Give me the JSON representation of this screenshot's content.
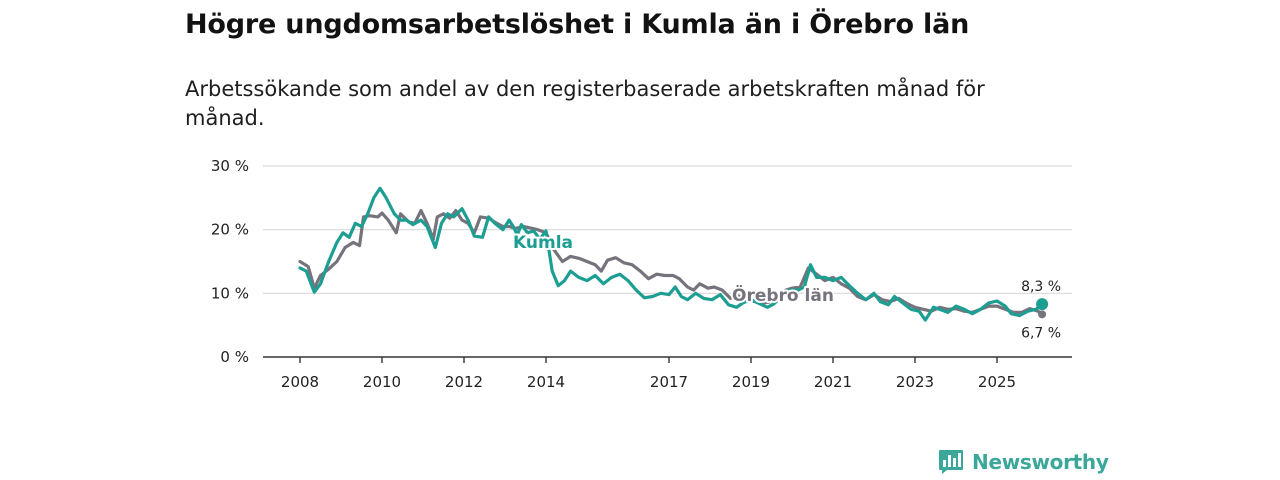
{
  "title": "Högre ungdomsarbetslöshet i Kumla än i Örebro län",
  "subtitle": "Arbetssökande som andel av den registerbaserade arbetskraften månad för månad.",
  "brand": {
    "name": "Newsworthy",
    "color": "#3aa79a"
  },
  "chart_data": {
    "type": "line",
    "title": "Högre ungdomsarbetslöshet i Kumla än i Örebro län",
    "subtitle": "Arbetssökande som andel av den registerbaserade arbetskraften månad för månad.",
    "xlabel": "",
    "ylabel": "",
    "xlim": [
      2007.9,
      2026.5
    ],
    "ylim": [
      0,
      30
    ],
    "x_ticks": [
      2008,
      2010,
      2012,
      2014,
      2017,
      2019,
      2021,
      2023,
      2025
    ],
    "x_tick_labels": [
      "2008",
      "2010",
      "2012",
      "2014",
      "2017",
      "2019",
      "2021",
      "2023",
      "2025"
    ],
    "y_ticks": [
      0,
      10,
      20,
      30
    ],
    "y_tick_labels": [
      "0 %",
      "10 %",
      "20 %",
      "30 %"
    ],
    "grid": "horizontal",
    "series": [
      {
        "name": "Örebro län",
        "label": "Örebro län",
        "color": "#77737d",
        "end_label": "6,7 %",
        "points": [
          [
            2008.0,
            15.0
          ],
          [
            2008.2,
            14.2
          ],
          [
            2008.35,
            10.8
          ],
          [
            2008.5,
            12.8
          ],
          [
            2008.7,
            13.8
          ],
          [
            2008.9,
            15.0
          ],
          [
            2009.1,
            17.2
          ],
          [
            2009.3,
            18.0
          ],
          [
            2009.45,
            17.5
          ],
          [
            2009.55,
            22.0
          ],
          [
            2009.7,
            22.2
          ],
          [
            2009.9,
            22.0
          ],
          [
            2010.0,
            22.6
          ],
          [
            2010.15,
            21.5
          ],
          [
            2010.35,
            19.5
          ],
          [
            2010.45,
            22.5
          ],
          [
            2010.65,
            21.2
          ],
          [
            2010.8,
            21.0
          ],
          [
            2010.95,
            23.0
          ],
          [
            2011.1,
            21.0
          ],
          [
            2011.25,
            18.5
          ],
          [
            2011.35,
            22.0
          ],
          [
            2011.5,
            22.5
          ],
          [
            2011.65,
            21.8
          ],
          [
            2011.8,
            23.0
          ],
          [
            2011.95,
            21.5
          ],
          [
            2012.1,
            21.0
          ],
          [
            2012.25,
            19.5
          ],
          [
            2012.4,
            22.0
          ],
          [
            2012.6,
            21.8
          ],
          [
            2012.8,
            21.0
          ],
          [
            2012.95,
            20.5
          ],
          [
            2013.1,
            20.5
          ],
          [
            2013.25,
            20.2
          ],
          [
            2013.45,
            20.5
          ],
          [
            2013.6,
            20.3
          ],
          [
            2013.8,
            20.0
          ],
          [
            2014.0,
            19.5
          ],
          [
            2014.2,
            16.8
          ],
          [
            2014.4,
            15.0
          ],
          [
            2014.6,
            15.8
          ],
          [
            2014.8,
            15.5
          ],
          [
            2015.0,
            15.0
          ],
          [
            2015.2,
            14.5
          ],
          [
            2015.35,
            13.5
          ],
          [
            2015.5,
            15.2
          ],
          [
            2015.7,
            15.6
          ],
          [
            2015.9,
            14.8
          ],
          [
            2016.1,
            14.5
          ],
          [
            2016.3,
            13.5
          ],
          [
            2016.5,
            12.3
          ],
          [
            2016.7,
            13.0
          ],
          [
            2016.9,
            12.8
          ],
          [
            2017.1,
            12.8
          ],
          [
            2017.25,
            12.3
          ],
          [
            2017.45,
            11.0
          ],
          [
            2017.6,
            10.5
          ],
          [
            2017.75,
            11.5
          ],
          [
            2017.95,
            10.8
          ],
          [
            2018.1,
            11.0
          ],
          [
            2018.3,
            10.5
          ],
          [
            2018.5,
            9.2
          ],
          [
            2018.7,
            9.6
          ],
          [
            2018.9,
            9.0
          ],
          [
            2019.1,
            8.7
          ],
          [
            2019.3,
            8.5
          ],
          [
            2019.5,
            8.7
          ],
          [
            2019.7,
            9.5
          ],
          [
            2019.85,
            10.5
          ],
          [
            2020.0,
            10.8
          ],
          [
            2020.2,
            11.0
          ],
          [
            2020.4,
            14.0
          ],
          [
            2020.6,
            13.0
          ],
          [
            2020.8,
            12.0
          ],
          [
            2021.0,
            12.5
          ],
          [
            2021.2,
            11.5
          ],
          [
            2021.4,
            10.8
          ],
          [
            2021.6,
            9.5
          ],
          [
            2021.8,
            9.0
          ],
          [
            2022.0,
            9.8
          ],
          [
            2022.2,
            9.0
          ],
          [
            2022.4,
            8.7
          ],
          [
            2022.6,
            9.2
          ],
          [
            2022.8,
            8.4
          ],
          [
            2023.0,
            7.8
          ],
          [
            2023.2,
            7.5
          ],
          [
            2023.4,
            7.2
          ],
          [
            2023.6,
            7.8
          ],
          [
            2023.8,
            7.5
          ],
          [
            2024.0,
            7.6
          ],
          [
            2024.2,
            7.2
          ],
          [
            2024.4,
            7.0
          ],
          [
            2024.6,
            7.5
          ],
          [
            2024.8,
            8.0
          ],
          [
            2025.0,
            8.0
          ],
          [
            2025.2,
            7.5
          ],
          [
            2025.4,
            7.0
          ],
          [
            2025.6,
            7.0
          ],
          [
            2025.8,
            7.6
          ],
          [
            2026.0,
            7.2
          ],
          [
            2026.1,
            6.7
          ]
        ]
      },
      {
        "name": "Kumla",
        "label": "Kumla",
        "color": "#1d9e93",
        "end_label": "8,3 %",
        "points": [
          [
            2008.0,
            14.0
          ],
          [
            2008.15,
            13.5
          ],
          [
            2008.35,
            10.2
          ],
          [
            2008.5,
            11.5
          ],
          [
            2008.7,
            15.0
          ],
          [
            2008.9,
            18.0
          ],
          [
            2009.05,
            19.5
          ],
          [
            2009.2,
            18.8
          ],
          [
            2009.35,
            21.0
          ],
          [
            2009.5,
            20.5
          ],
          [
            2009.65,
            22.5
          ],
          [
            2009.8,
            25.0
          ],
          [
            2009.95,
            26.5
          ],
          [
            2010.1,
            25.0
          ],
          [
            2010.3,
            22.5
          ],
          [
            2010.45,
            21.5
          ],
          [
            2010.6,
            21.5
          ],
          [
            2010.75,
            20.8
          ],
          [
            2010.95,
            21.5
          ],
          [
            2011.1,
            20.5
          ],
          [
            2011.3,
            17.2
          ],
          [
            2011.45,
            21.0
          ],
          [
            2011.6,
            22.5
          ],
          [
            2011.75,
            22.0
          ],
          [
            2011.95,
            23.3
          ],
          [
            2012.1,
            21.5
          ],
          [
            2012.25,
            19.0
          ],
          [
            2012.45,
            18.8
          ],
          [
            2012.6,
            22.0
          ],
          [
            2012.75,
            21.0
          ],
          [
            2012.95,
            20.0
          ],
          [
            2013.1,
            21.5
          ],
          [
            2013.2,
            20.5
          ],
          [
            2013.3,
            19.2
          ],
          [
            2013.4,
            20.8
          ],
          [
            2013.55,
            19.5
          ],
          [
            2013.7,
            19.8
          ],
          [
            2013.85,
            18.5
          ],
          [
            2014.0,
            19.8
          ],
          [
            2014.15,
            13.5
          ],
          [
            2014.3,
            11.2
          ],
          [
            2014.45,
            12.0
          ],
          [
            2014.6,
            13.5
          ],
          [
            2014.8,
            12.5
          ],
          [
            2015.0,
            12.0
          ],
          [
            2015.2,
            12.8
          ],
          [
            2015.4,
            11.5
          ],
          [
            2015.6,
            12.5
          ],
          [
            2015.8,
            13.0
          ],
          [
            2016.0,
            12.0
          ],
          [
            2016.2,
            10.5
          ],
          [
            2016.4,
            9.3
          ],
          [
            2016.6,
            9.5
          ],
          [
            2016.8,
            10.0
          ],
          [
            2017.0,
            9.8
          ],
          [
            2017.15,
            11.0
          ],
          [
            2017.3,
            9.5
          ],
          [
            2017.45,
            9.0
          ],
          [
            2017.65,
            10.0
          ],
          [
            2017.85,
            9.2
          ],
          [
            2018.05,
            9.0
          ],
          [
            2018.25,
            9.8
          ],
          [
            2018.45,
            8.2
          ],
          [
            2018.65,
            7.8
          ],
          [
            2018.8,
            8.5
          ],
          [
            2019.0,
            9.0
          ],
          [
            2019.2,
            8.4
          ],
          [
            2019.4,
            7.8
          ],
          [
            2019.55,
            8.3
          ],
          [
            2019.75,
            9.5
          ],
          [
            2019.95,
            10.5
          ],
          [
            2020.15,
            10.5
          ],
          [
            2020.3,
            11.0
          ],
          [
            2020.45,
            14.5
          ],
          [
            2020.6,
            12.5
          ],
          [
            2020.8,
            12.5
          ],
          [
            2021.0,
            12.0
          ],
          [
            2021.2,
            12.5
          ],
          [
            2021.4,
            11.2
          ],
          [
            2021.6,
            10.0
          ],
          [
            2021.8,
            9.0
          ],
          [
            2022.0,
            10.0
          ],
          [
            2022.15,
            8.7
          ],
          [
            2022.35,
            8.2
          ],
          [
            2022.5,
            9.5
          ],
          [
            2022.7,
            8.5
          ],
          [
            2022.9,
            7.5
          ],
          [
            2023.1,
            7.2
          ],
          [
            2023.25,
            5.8
          ],
          [
            2023.45,
            7.8
          ],
          [
            2023.6,
            7.5
          ],
          [
            2023.8,
            7.0
          ],
          [
            2024.0,
            8.0
          ],
          [
            2024.2,
            7.5
          ],
          [
            2024.4,
            6.8
          ],
          [
            2024.6,
            7.5
          ],
          [
            2024.8,
            8.5
          ],
          [
            2025.0,
            8.8
          ],
          [
            2025.2,
            8.0
          ],
          [
            2025.35,
            6.8
          ],
          [
            2025.55,
            6.5
          ],
          [
            2025.75,
            7.2
          ],
          [
            2025.95,
            7.5
          ],
          [
            2026.1,
            8.3
          ]
        ]
      }
    ]
  }
}
